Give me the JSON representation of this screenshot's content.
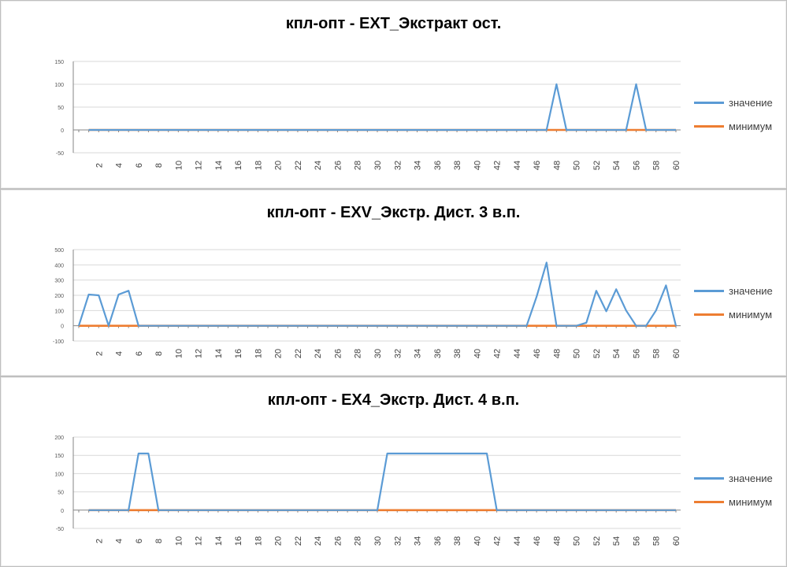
{
  "colors": {
    "value_series": "#5b9bd5",
    "min_series": "#ed7d31",
    "grid": "#d9d9d9",
    "axis": "#868686"
  },
  "chart_data": [
    {
      "type": "line",
      "title": "кпл-опт - EXT_Экстракт ост.",
      "xlabel": "",
      "ylabel": "",
      "x_tick_labels": [
        "2",
        "4",
        "6",
        "8",
        "10",
        "12",
        "14",
        "16",
        "18",
        "20",
        "22",
        "24",
        "26",
        "28",
        "30",
        "32",
        "34",
        "36",
        "38",
        "40",
        "42",
        "44",
        "46",
        "48",
        "50",
        "52",
        "54",
        "56",
        "58",
        "60"
      ],
      "y_tick_labels": [
        "150",
        "100",
        "50",
        "0",
        "-50"
      ],
      "ylim": [
        -50,
        150
      ],
      "grid": true,
      "legend_position": "right",
      "x": [
        1,
        2,
        3,
        4,
        5,
        6,
        7,
        8,
        9,
        10,
        11,
        12,
        13,
        14,
        15,
        16,
        17,
        18,
        19,
        20,
        21,
        22,
        23,
        24,
        25,
        26,
        27,
        28,
        29,
        30,
        31,
        32,
        33,
        34,
        35,
        36,
        37,
        38,
        39,
        40,
        41,
        42,
        43,
        44,
        45,
        46,
        47,
        48,
        49,
        50,
        51,
        52,
        53,
        54,
        55,
        56,
        57,
        58,
        59,
        60
      ],
      "series": [
        {
          "name": "значение",
          "values": [
            0,
            0,
            0,
            0,
            0,
            0,
            0,
            0,
            0,
            0,
            0,
            0,
            0,
            0,
            0,
            0,
            0,
            0,
            0,
            0,
            0,
            0,
            0,
            0,
            0,
            0,
            0,
            0,
            0,
            0,
            0,
            0,
            0,
            0,
            0,
            0,
            0,
            0,
            0,
            0,
            0,
            0,
            0,
            0,
            0,
            0,
            0,
            100,
            0,
            0,
            0,
            0,
            0,
            0,
            0,
            100,
            0,
            0,
            0,
            0
          ]
        },
        {
          "name": "минимум",
          "values": [
            0,
            0,
            0,
            0,
            0,
            0,
            0,
            0,
            0,
            0,
            0,
            0,
            0,
            0,
            0,
            0,
            0,
            0,
            0,
            0,
            0,
            0,
            0,
            0,
            0,
            0,
            0,
            0,
            0,
            0,
            0,
            0,
            0,
            0,
            0,
            0,
            0,
            0,
            0,
            0,
            0,
            0,
            0,
            0,
            0,
            0,
            0,
            0,
            0,
            0,
            0,
            0,
            0,
            0,
            0,
            0,
            0,
            0,
            0,
            0
          ]
        }
      ]
    },
    {
      "type": "line",
      "title": "кпл-опт - EXV_Экстр. Дист. 3 в.п.",
      "xlabel": "",
      "ylabel": "",
      "x_tick_labels": [
        "2",
        "4",
        "6",
        "8",
        "10",
        "12",
        "14",
        "16",
        "18",
        "20",
        "22",
        "24",
        "26",
        "28",
        "30",
        "32",
        "34",
        "36",
        "38",
        "40",
        "42",
        "44",
        "46",
        "48",
        "50",
        "52",
        "54",
        "56",
        "58",
        "60"
      ],
      "y_tick_labels": [
        "500",
        "400",
        "300",
        "200",
        "100",
        "0",
        "-100"
      ],
      "ylim": [
        -100,
        500
      ],
      "grid": true,
      "legend_position": "right",
      "x": [
        0,
        1,
        2,
        3,
        4,
        5,
        6,
        7,
        8,
        9,
        10,
        11,
        12,
        13,
        14,
        15,
        16,
        17,
        18,
        19,
        20,
        21,
        22,
        23,
        24,
        25,
        26,
        27,
        28,
        29,
        30,
        31,
        32,
        33,
        34,
        35,
        36,
        37,
        38,
        39,
        40,
        41,
        42,
        43,
        44,
        45,
        46,
        47,
        48,
        49,
        50,
        51,
        52,
        53,
        54,
        55,
        56,
        57,
        58,
        59,
        60
      ],
      "series": [
        {
          "name": "значение",
          "values": [
            0,
            205,
            200,
            0,
            205,
            230,
            0,
            0,
            0,
            0,
            0,
            0,
            0,
            0,
            0,
            0,
            0,
            0,
            0,
            0,
            0,
            0,
            0,
            0,
            0,
            0,
            0,
            0,
            0,
            0,
            0,
            0,
            0,
            0,
            0,
            0,
            0,
            0,
            0,
            0,
            0,
            0,
            0,
            0,
            0,
            0,
            190,
            415,
            0,
            0,
            0,
            20,
            230,
            95,
            240,
            100,
            0,
            0,
            100,
            265,
            0
          ]
        },
        {
          "name": "минимум",
          "values": [
            0,
            0,
            0,
            0,
            0,
            0,
            0,
            0,
            0,
            0,
            0,
            0,
            0,
            0,
            0,
            0,
            0,
            0,
            0,
            0,
            0,
            0,
            0,
            0,
            0,
            0,
            0,
            0,
            0,
            0,
            0,
            0,
            0,
            0,
            0,
            0,
            0,
            0,
            0,
            0,
            0,
            0,
            0,
            0,
            0,
            0,
            0,
            0,
            0,
            0,
            0,
            0,
            0,
            0,
            0,
            0,
            0,
            0,
            0,
            0,
            0
          ]
        }
      ]
    },
    {
      "type": "line",
      "title": "кпл-опт - EX4_Экстр. Дист. 4 в.п.",
      "xlabel": "",
      "ylabel": "",
      "x_tick_labels": [
        "2",
        "4",
        "6",
        "8",
        "10",
        "12",
        "14",
        "16",
        "18",
        "20",
        "22",
        "24",
        "26",
        "28",
        "30",
        "32",
        "34",
        "36",
        "38",
        "40",
        "42",
        "44",
        "46",
        "48",
        "50",
        "52",
        "54",
        "56",
        "58",
        "60"
      ],
      "y_tick_labels": [
        "200",
        "150",
        "100",
        "50",
        "0",
        "-50"
      ],
      "ylim": [
        -50,
        200
      ],
      "grid": true,
      "legend_position": "right",
      "x": [
        1,
        2,
        3,
        4,
        5,
        6,
        7,
        8,
        9,
        10,
        11,
        12,
        13,
        14,
        15,
        16,
        17,
        18,
        19,
        20,
        21,
        22,
        23,
        24,
        25,
        26,
        27,
        28,
        29,
        30,
        31,
        32,
        33,
        34,
        35,
        36,
        37,
        38,
        39,
        40,
        41,
        42,
        43,
        44,
        45,
        46,
        47,
        48,
        49,
        50,
        51,
        52,
        53,
        54,
        55,
        56,
        57,
        58,
        59,
        60
      ],
      "series": [
        {
          "name": "значение",
          "values": [
            0,
            0,
            0,
            0,
            0,
            155,
            155,
            0,
            0,
            0,
            0,
            0,
            0,
            0,
            0,
            0,
            0,
            0,
            0,
            0,
            0,
            0,
            0,
            0,
            0,
            0,
            0,
            0,
            0,
            0,
            155,
            155,
            155,
            155,
            155,
            155,
            155,
            155,
            155,
            155,
            155,
            0,
            0,
            0,
            0,
            0,
            0,
            0,
            0,
            0,
            0,
            0,
            0,
            0,
            0,
            0,
            0,
            0,
            0,
            0
          ]
        },
        {
          "name": "минимум",
          "values": [
            0,
            0,
            0,
            0,
            0,
            0,
            0,
            0,
            0,
            0,
            0,
            0,
            0,
            0,
            0,
            0,
            0,
            0,
            0,
            0,
            0,
            0,
            0,
            0,
            0,
            0,
            0,
            0,
            0,
            0,
            0,
            0,
            0,
            0,
            0,
            0,
            0,
            0,
            0,
            0,
            0,
            0,
            0,
            0,
            0,
            0,
            0,
            0,
            0,
            0,
            0,
            0,
            0,
            0,
            0,
            0,
            0,
            0,
            0,
            0
          ]
        }
      ]
    }
  ]
}
